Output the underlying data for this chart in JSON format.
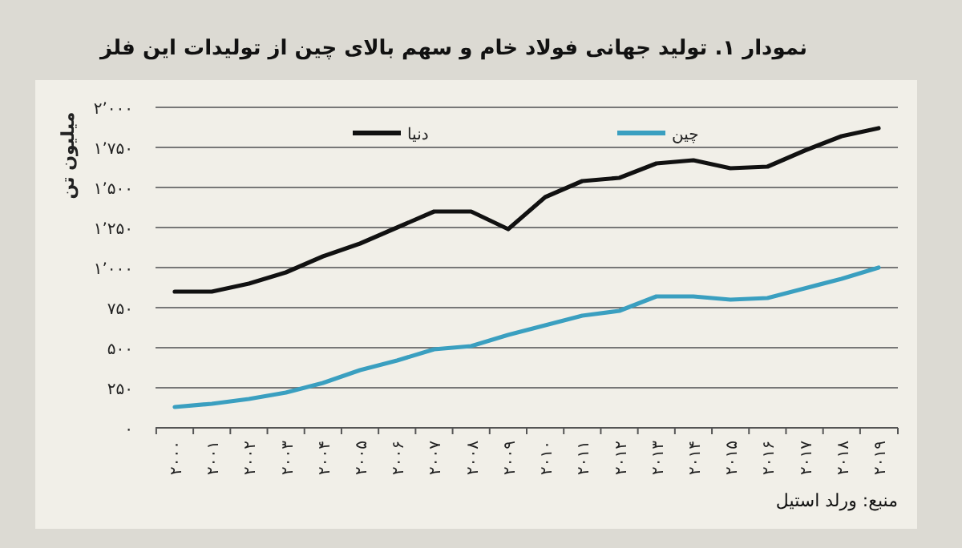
{
  "chart_data": {
    "type": "line",
    "title": "نمودار ۱. تولید جهانی فولاد خام و سهم بالای چین از تولیدات این فلز",
    "ylabel": "میلیون تن",
    "annotations": [
      "منبع: ورلد استیل"
    ],
    "categories": [
      "۲۰۰۰",
      "۲۰۰۱",
      "۲۰۰۲",
      "۲۰۰۳",
      "۲۰۰۴",
      "۲۰۰۵",
      "۲۰۰۶",
      "۲۰۰۷",
      "۲۰۰۸",
      "۲۰۰۹",
      "۲۰۱۰",
      "۲۰۱۱",
      "۲۰۱۲",
      "۲۰۱۳",
      "۲۰۱۴",
      "۲۰۱۵",
      "۲۰۱۶",
      "۲۰۱۷",
      "۲۰۱۸",
      "۲۰۱۹"
    ],
    "series": [
      {
        "name": "دنیا",
        "color": "#111111",
        "values": [
          850,
          850,
          900,
          970,
          1070,
          1150,
          1250,
          1350,
          1350,
          1240,
          1440,
          1540,
          1560,
          1650,
          1670,
          1620,
          1630,
          1730,
          1820,
          1870
        ]
      },
      {
        "name": "چین",
        "color": "#3a9fc0",
        "values": [
          130,
          150,
          180,
          220,
          280,
          360,
          420,
          490,
          510,
          580,
          640,
          700,
          730,
          820,
          820,
          800,
          810,
          870,
          930,
          1000
        ]
      }
    ],
    "ylim": [
      0,
      2000
    ],
    "yticks": [
      {
        "value": 0,
        "label": "۰"
      },
      {
        "value": 250,
        "label": "۲۵۰"
      },
      {
        "value": 500,
        "label": "۵۰۰"
      },
      {
        "value": 750,
        "label": "۷۵۰"
      },
      {
        "value": 1000,
        "label": "۱٬۰۰۰"
      },
      {
        "value": 1250,
        "label": "۱٬۲۵۰"
      },
      {
        "value": 1500,
        "label": "۱٬۵۰۰"
      },
      {
        "value": 1750,
        "label": "۱٬۷۵۰"
      },
      {
        "value": 2000,
        "label": "۲٬۰۰۰"
      }
    ],
    "grid": "y",
    "legend": "top",
    "line_style": "solid",
    "marker": "none"
  }
}
